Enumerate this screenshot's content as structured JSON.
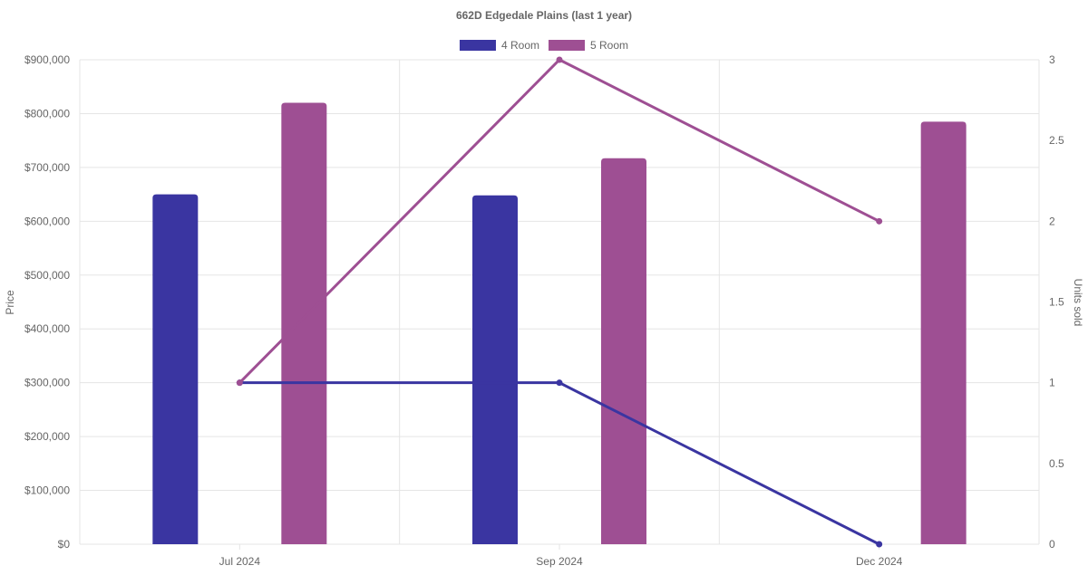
{
  "chart_data": {
    "type": "bar",
    "title": "662D Edgedale  Plains (last 1 year)",
    "categories": [
      "Jul 2024",
      "Sep 2024",
      "Dec 2024"
    ],
    "y_left": {
      "label": "Price",
      "lim": [
        0,
        900000
      ],
      "ticks": [
        "$0",
        "$100,000",
        "$200,000",
        "$300,000",
        "$400,000",
        "$500,000",
        "$600,000",
        "$700,000",
        "$800,000",
        "$900,000"
      ]
    },
    "y_right": {
      "label": "Units sold",
      "lim": [
        0,
        3
      ],
      "ticks": [
        "0",
        "0.5",
        "1",
        "1.5",
        "2",
        "2.5",
        "3"
      ]
    },
    "grid": true,
    "legend_position": "top-center",
    "series": [
      {
        "name": "4 Room",
        "color": "#3a35a1",
        "price": [
          650000,
          648000,
          null
        ],
        "units": [
          1,
          1,
          0
        ]
      },
      {
        "name": "5 Room",
        "color": "#9e4f93",
        "price": [
          820000,
          717000,
          785000
        ],
        "units": [
          1,
          3,
          2
        ]
      }
    ]
  }
}
